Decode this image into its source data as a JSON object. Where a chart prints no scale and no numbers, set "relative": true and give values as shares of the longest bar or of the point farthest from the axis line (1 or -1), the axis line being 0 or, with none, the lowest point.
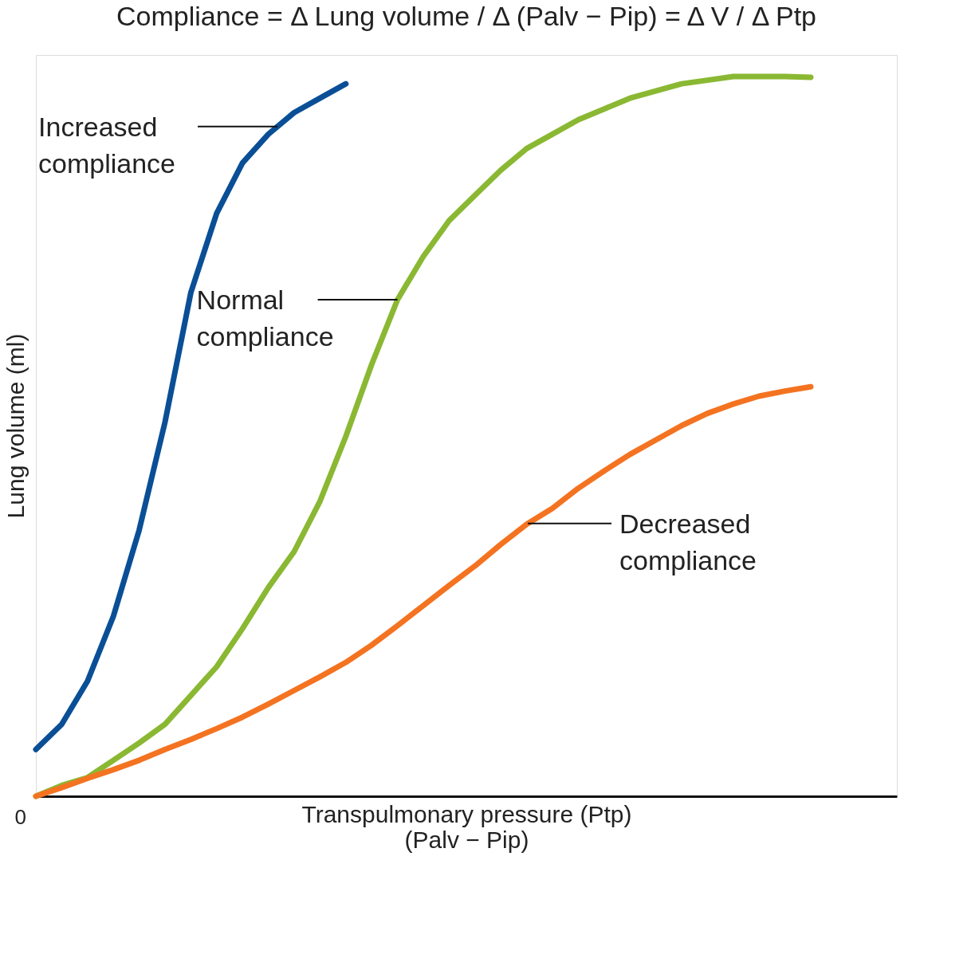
{
  "chart_data": {
    "type": "line",
    "relative": true,
    "title": "Compliance = Δ Lung volume / Δ (Palv − Pip) = Δ V / Δ Ptp",
    "xlabel": "Transpulmonary pressure (Ptp)\n(Palv − Pip)",
    "ylabel": "Lung volume (ml)",
    "grid": false,
    "marker": "none",
    "line_style": "solid",
    "categories": [
      null,
      null,
      null,
      null,
      null,
      null,
      null,
      null,
      null,
      null,
      null,
      null,
      null,
      null,
      null,
      null,
      null,
      null,
      null,
      null,
      null,
      null,
      null,
      null,
      null,
      null,
      null,
      null,
      null,
      null,
      null
    ],
    "series": [
      {
        "color": "#0a4f96",
        "values": [
          0.065,
          0.1,
          0.16,
          0.25,
          0.37,
          0.52,
          0.7,
          0.81,
          0.88,
          0.92,
          0.95,
          0.97,
          0.99,
          null,
          null,
          null,
          null,
          null,
          null,
          null,
          null,
          null,
          null,
          null,
          null,
          null,
          null,
          null,
          null,
          null,
          null
        ]
      },
      {
        "color": "#8ab833",
        "values": [
          0.0,
          0.015,
          0.026,
          0.05,
          0.074,
          0.1,
          0.14,
          0.18,
          0.233,
          0.29,
          0.34,
          0.41,
          0.5,
          0.6,
          0.69,
          0.75,
          0.8,
          0.835,
          0.87,
          0.9,
          0.92,
          0.94,
          0.955,
          0.97,
          0.98,
          0.99,
          0.995,
          1.0,
          1.0,
          1.0,
          0.999
        ]
      },
      {
        "color": "#f47321",
        "values": [
          0.0,
          0.012,
          0.025,
          0.037,
          0.05,
          0.065,
          0.079,
          0.094,
          0.11,
          0.128,
          0.147,
          0.166,
          0.186,
          0.21,
          0.237,
          0.265,
          0.293,
          0.32,
          0.35,
          0.378,
          0.4,
          0.428,
          0.452,
          0.475,
          0.495,
          0.515,
          0.532,
          0.545,
          0.556,
          0.563,
          0.569
        ]
      }
    ],
    "annotations": [
      "Increased compliance",
      "Normal compliance",
      "Decreased compliance",
      "0"
    ]
  }
}
